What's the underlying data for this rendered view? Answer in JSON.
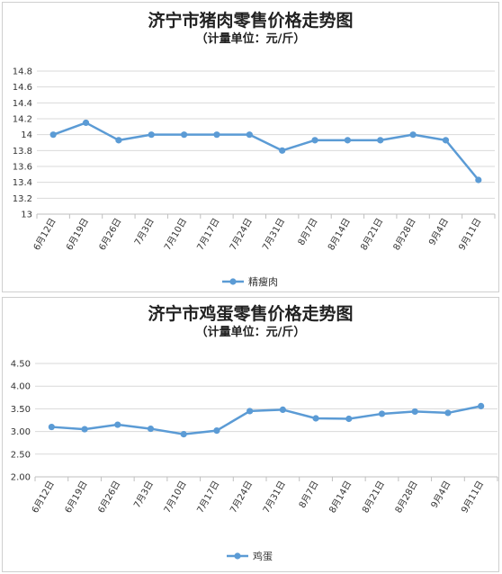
{
  "chart_data": [
    {
      "type": "line",
      "title": "济宁市猪肉零售价格走势图",
      "subtitle": "（计量单位：元/斤）",
      "categories": [
        "6月12日",
        "6月19日",
        "6月26日",
        "7月3日",
        "7月10日",
        "7月17日",
        "7月24日",
        "7月31日",
        "8月7日",
        "8月14日",
        "8月21日",
        "8月28日",
        "9月4日",
        "9月11日"
      ],
      "series": [
        {
          "name": "精瘦肉",
          "color": "#5b9bd5",
          "values": [
            14.0,
            14.15,
            13.93,
            14.0,
            14.0,
            14.0,
            14.0,
            13.8,
            13.93,
            13.93,
            13.93,
            14.0,
            13.93,
            13.43
          ]
        }
      ],
      "ylim": [
        13,
        14.8
      ],
      "yticks": [
        "13",
        "13.2",
        "13.4",
        "13.6",
        "13.8",
        "14",
        "14.2",
        "14.4",
        "14.6",
        "14.8"
      ],
      "ytick_values": [
        13,
        13.2,
        13.4,
        13.6,
        13.8,
        14,
        14.2,
        14.4,
        14.6,
        14.8
      ],
      "grid": true,
      "legend": "bottom"
    },
    {
      "type": "line",
      "title": "济宁市鸡蛋零售价格走势图",
      "subtitle": "（计量单位：元/斤）",
      "categories": [
        "6月12日",
        "6月19日",
        "6月26日",
        "7月3日",
        "7月10日",
        "7月17日",
        "7月24日",
        "7月31日",
        "8月7日",
        "8月14日",
        "8月21日",
        "8月28日",
        "9月4日",
        "9月11日"
      ],
      "series": [
        {
          "name": "鸡蛋",
          "color": "#5b9bd5",
          "values": [
            3.1,
            3.05,
            3.15,
            3.06,
            2.94,
            3.02,
            3.45,
            3.48,
            3.29,
            3.28,
            3.39,
            3.44,
            3.41,
            3.56
          ]
        }
      ],
      "ylim": [
        2.0,
        4.5
      ],
      "yticks": [
        "2.00",
        "2.50",
        "3.00",
        "3.50",
        "4.00",
        "4.50"
      ],
      "ytick_values": [
        2.0,
        2.5,
        3.0,
        3.5,
        4.0,
        4.5
      ],
      "grid": true,
      "legend": "bottom"
    }
  ]
}
